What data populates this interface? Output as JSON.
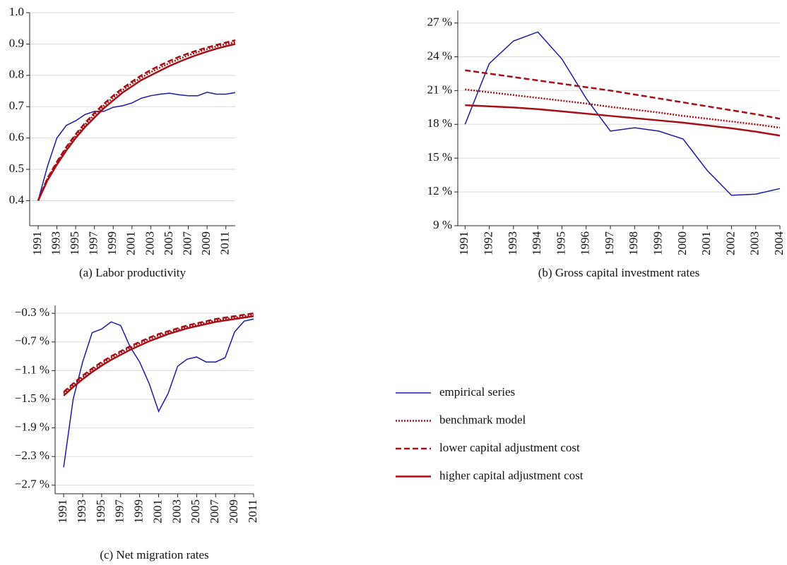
{
  "chart_data": [
    {
      "type": "line",
      "title": "(a) Labor productivity",
      "x": [
        1991,
        1992,
        1993,
        1994,
        1995,
        1996,
        1997,
        1998,
        1999,
        2000,
        2001,
        2002,
        2003,
        2004,
        2005,
        2006,
        2007,
        2008,
        2009,
        2010,
        2011,
        2012
      ],
      "xlim": [
        1990.1,
        2012
      ],
      "xticks": [
        1991,
        1993,
        1995,
        1997,
        1999,
        2001,
        2003,
        2005,
        2007,
        2009,
        2011
      ],
      "ylim": [
        0.32,
        1.0
      ],
      "yticks": [
        0.4,
        0.5,
        0.6,
        0.7,
        0.8,
        0.9,
        {
          "value": 1,
          "label": "1.0"
        }
      ],
      "grid": true,
      "series": [
        {
          "color": "#1a1aa8",
          "style": "solid",
          "values": [
            0.4,
            0.51,
            0.6,
            0.64,
            0.655,
            0.675,
            0.685,
            0.685,
            0.698,
            0.703,
            0.712,
            0.727,
            0.735,
            0.74,
            0.743,
            0.738,
            0.735,
            0.735,
            0.746,
            0.74,
            0.74,
            0.745
          ]
        },
        {
          "color": "#a50f15",
          "style": "dotted",
          "values": [
            0.4,
            0.47,
            0.52,
            0.567,
            0.607,
            0.643,
            0.674,
            0.703,
            0.729,
            0.753,
            0.774,
            0.793,
            0.81,
            0.825,
            0.839,
            0.852,
            0.864,
            0.874,
            0.884,
            0.892,
            0.9,
            0.906
          ]
        },
        {
          "color": "#a50f15",
          "style": "dashed",
          "values": [
            0.4,
            0.472,
            0.524,
            0.571,
            0.612,
            0.648,
            0.68,
            0.709,
            0.735,
            0.759,
            0.78,
            0.8,
            0.817,
            0.832,
            0.846,
            0.859,
            0.87,
            0.88,
            0.889,
            0.897,
            0.905,
            0.912
          ]
        },
        {
          "color": "#a50f15",
          "style": "solid-thick",
          "values": [
            0.4,
            0.465,
            0.515,
            0.56,
            0.6,
            0.635,
            0.665,
            0.695,
            0.72,
            0.745,
            0.765,
            0.785,
            0.8,
            0.815,
            0.83,
            0.843,
            0.855,
            0.866,
            0.876,
            0.885,
            0.893,
            0.9
          ]
        }
      ]
    },
    {
      "type": "line",
      "title": "(b) Gross capital investment rates",
      "x": [
        1991,
        1992,
        1993,
        1994,
        1995,
        1996,
        1997,
        1998,
        1999,
        2000,
        2001,
        2002,
        2003,
        2004
      ],
      "xlim": [
        1990.7,
        2004
      ],
      "xticks": [
        1991,
        1992,
        1993,
        1994,
        1995,
        1996,
        1997,
        1998,
        1999,
        2000,
        2001,
        2002,
        2003,
        2004
      ],
      "ylim": [
        9,
        28.1
      ],
      "yticks": [
        {
          "value": 9,
          "label": "9 %"
        },
        {
          "value": 12,
          "label": "12 %"
        },
        {
          "value": 15,
          "label": "15 %"
        },
        {
          "value": 18,
          "label": "18 %"
        },
        {
          "value": 21,
          "label": "21 %"
        },
        {
          "value": 24,
          "label": "24 %"
        },
        {
          "value": 27,
          "label": "27 %"
        }
      ],
      "grid": true,
      "series": [
        {
          "color": "#1a1aa8",
          "style": "solid",
          "values": [
            18.0,
            23.4,
            25.4,
            26.2,
            23.8,
            20.3,
            17.4,
            17.7,
            17.4,
            16.7,
            13.9,
            11.7,
            11.8,
            12.3
          ]
        },
        {
          "color": "#a50f15",
          "style": "dotted",
          "values": [
            21.1,
            20.85,
            20.6,
            20.35,
            20.1,
            19.85,
            19.55,
            19.3,
            19.05,
            18.75,
            18.5,
            18.25,
            18.0,
            17.7
          ]
        },
        {
          "color": "#a50f15",
          "style": "dashed",
          "values": [
            22.8,
            22.5,
            22.2,
            21.9,
            21.6,
            21.3,
            21.0,
            20.65,
            20.3,
            19.95,
            19.6,
            19.25,
            18.9,
            18.5
          ]
        },
        {
          "color": "#a50f15",
          "style": "solid-thick",
          "values": [
            19.7,
            19.6,
            19.5,
            19.35,
            19.15,
            18.95,
            18.75,
            18.55,
            18.35,
            18.15,
            17.9,
            17.65,
            17.35,
            17.0
          ]
        }
      ]
    },
    {
      "type": "line",
      "title": "(c) Net migration rates",
      "x": [
        1991,
        1992,
        1993,
        1994,
        1995,
        1996,
        1997,
        1998,
        1999,
        2000,
        2001,
        2002,
        2003,
        2004,
        2005,
        2006,
        2007,
        2008,
        2009,
        2010,
        2011
      ],
      "xlim": [
        1990.1,
        2011
      ],
      "xticks": [
        1991,
        1993,
        1995,
        1997,
        1999,
        2001,
        2003,
        2005,
        2007,
        2009,
        2011
      ],
      "ylim": [
        -2.82,
        -0.19
      ],
      "yticks": [
        {
          "value": -2.7,
          "label": "−2.7 %"
        },
        {
          "value": -2.3,
          "label": "−2.3 %"
        },
        {
          "value": -1.9,
          "label": "−1.9 %"
        },
        {
          "value": -1.5,
          "label": "−1.5 %"
        },
        {
          "value": -1.1,
          "label": "−1.1 %"
        },
        {
          "value": -0.7,
          "label": "−0.7 %"
        },
        {
          "value": -0.3,
          "label": "−0.3 %"
        }
      ],
      "grid": true,
      "legend": "right",
      "series": [
        {
          "name": "empirical series",
          "color": "#1a1aa8",
          "style": "solid",
          "values": [
            -2.45,
            -1.5,
            -0.98,
            -0.57,
            -0.52,
            -0.42,
            -0.47,
            -0.77,
            -0.98,
            -1.28,
            -1.67,
            -1.42,
            -1.04,
            -0.94,
            -0.91,
            -0.98,
            -0.98,
            -0.92,
            -0.56,
            -0.41,
            -0.38
          ]
        },
        {
          "name": "benchmark model",
          "color": "#a50f15",
          "style": "dotted",
          "values": [
            -1.42,
            -1.3,
            -1.19,
            -1.09,
            -1.0,
            -0.92,
            -0.85,
            -0.78,
            -0.72,
            -0.66,
            -0.61,
            -0.57,
            -0.53,
            -0.49,
            -0.46,
            -0.43,
            -0.4,
            -0.38,
            -0.36,
            -0.34,
            -0.32
          ]
        },
        {
          "name": "lower capital adjustment cost",
          "color": "#a50f15",
          "style": "dashed",
          "values": [
            -1.4,
            -1.28,
            -1.17,
            -1.07,
            -0.98,
            -0.9,
            -0.83,
            -0.76,
            -0.7,
            -0.64,
            -0.59,
            -0.55,
            -0.51,
            -0.47,
            -0.44,
            -0.41,
            -0.38,
            -0.36,
            -0.34,
            -0.32,
            -0.3
          ]
        },
        {
          "name": "higher capital adjustment cost",
          "color": "#a50f15",
          "style": "solid-thick",
          "values": [
            -1.45,
            -1.33,
            -1.22,
            -1.12,
            -1.03,
            -0.95,
            -0.88,
            -0.81,
            -0.75,
            -0.69,
            -0.64,
            -0.59,
            -0.55,
            -0.51,
            -0.48,
            -0.45,
            -0.42,
            -0.4,
            -0.38,
            -0.36,
            -0.34
          ]
        }
      ]
    }
  ]
}
